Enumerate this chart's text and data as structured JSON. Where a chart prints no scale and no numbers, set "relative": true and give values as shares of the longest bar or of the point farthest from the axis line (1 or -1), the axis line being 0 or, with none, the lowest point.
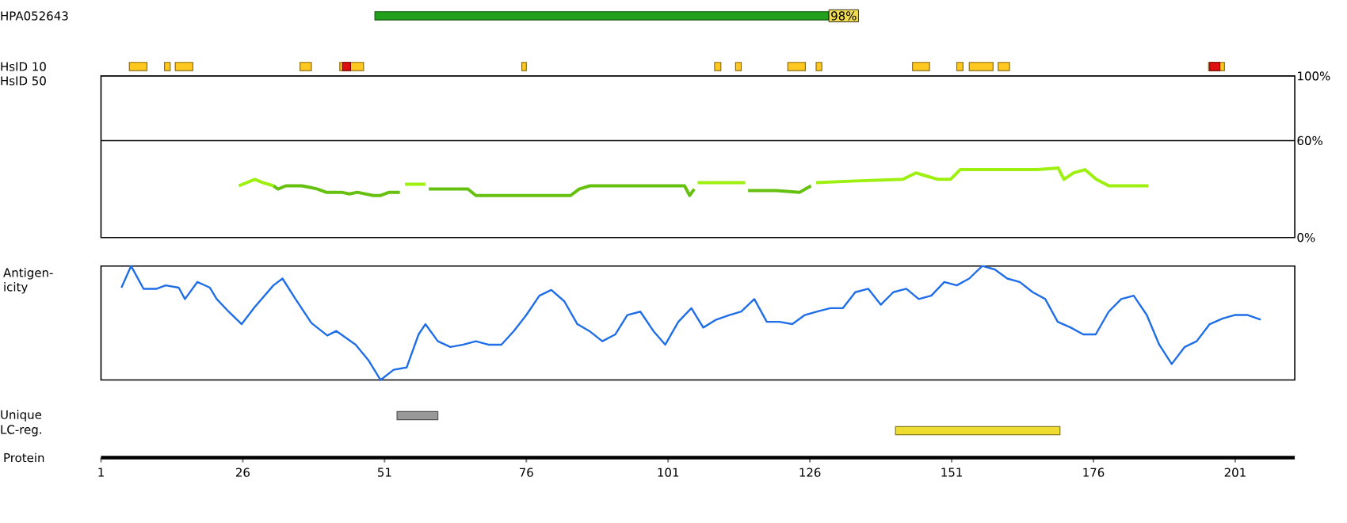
{
  "chart_data": [
    {
      "type": "bar",
      "orientation": "horizontal",
      "categories": [
        "HPA052643",
        "HsID 10",
        "HsID 50",
        "Unique",
        "LC-reg."
      ],
      "xlabel": "Protein",
      "xlim": [
        1,
        211.5
      ],
      "xticks": [
        1,
        26,
        51,
        76,
        101,
        126,
        151,
        176,
        201
      ],
      "annotations": [
        "98%"
      ],
      "series": [
        {
          "color": "#22a01c",
          "values": [
            80,
            null,
            null,
            null,
            null
          ],
          "base": [
            49.3,
            null,
            null,
            null,
            null
          ]
        },
        {
          "color": "#ffc820",
          "values": [
            null,
            3.1,
            null,
            null,
            null
          ],
          "base": [
            null,
            6.0,
            null,
            null,
            null
          ]
        },
        {
          "color": "#ffc820",
          "values": [
            null,
            1.0,
            null,
            null,
            null
          ],
          "base": [
            null,
            12.2,
            null,
            null,
            null
          ]
        },
        {
          "color": "#ffc820",
          "values": [
            null,
            3.1,
            null,
            null,
            null
          ],
          "base": [
            null,
            14.1,
            null,
            null,
            null
          ]
        },
        {
          "color": "#ffc820",
          "values": [
            null,
            2.0,
            null,
            null,
            null
          ],
          "base": [
            null,
            36.1,
            null,
            null,
            null
          ]
        },
        {
          "color": "#ffc820",
          "values": [
            null,
            4.2,
            null,
            null,
            null
          ],
          "base": [
            null,
            43.1,
            null,
            null,
            null
          ]
        },
        {
          "color": "#ffc820",
          "values": [
            null,
            0.8,
            null,
            null,
            null
          ],
          "base": [
            null,
            75.2,
            null,
            null,
            null
          ]
        },
        {
          "color": "#ffc820",
          "values": [
            null,
            1.1,
            null,
            null,
            null
          ],
          "base": [
            null,
            109.2,
            null,
            null,
            null
          ]
        },
        {
          "color": "#ffc820",
          "values": [
            null,
            1.0,
            null,
            null,
            null
          ],
          "base": [
            null,
            112.9,
            null,
            null,
            null
          ]
        },
        {
          "color": "#ffc820",
          "values": [
            null,
            3.1,
            null,
            null,
            null
          ],
          "base": [
            null,
            122.1,
            null,
            null,
            null
          ]
        },
        {
          "color": "#ffc820",
          "values": [
            null,
            1.0,
            null,
            null,
            null
          ],
          "base": [
            null,
            127.1,
            null,
            null,
            null
          ]
        },
        {
          "color": "#ffc820",
          "values": [
            null,
            3.0,
            null,
            null,
            null
          ],
          "base": [
            null,
            144.1,
            null,
            null,
            null
          ]
        },
        {
          "color": "#ffc820",
          "values": [
            null,
            1.1,
            null,
            null,
            null
          ],
          "base": [
            null,
            151.9,
            null,
            null,
            null
          ]
        },
        {
          "color": "#ffc820",
          "values": [
            null,
            4.2,
            null,
            null,
            null
          ],
          "base": [
            null,
            154.1,
            null,
            null,
            null
          ]
        },
        {
          "color": "#ffc820",
          "values": [
            null,
            2.0,
            null,
            null,
            null
          ],
          "base": [
            null,
            159.2,
            null,
            null,
            null
          ]
        },
        {
          "color": "#ffc820",
          "values": [
            null,
            2.8,
            null,
            null,
            null
          ],
          "base": [
            null,
            196.3,
            null,
            null,
            null
          ]
        },
        {
          "color": "#e01010",
          "values": [
            null,
            1.4,
            null,
            null,
            null
          ],
          "base": [
            null,
            43.6,
            null,
            null,
            null
          ]
        },
        {
          "color": "#e01010",
          "values": [
            null,
            1.8,
            null,
            null,
            null
          ],
          "base": [
            null,
            196.5,
            null,
            null,
            null
          ]
        },
        {
          "colors": [
            null,
            null,
            null,
            "#999999",
            "#f0dc30"
          ],
          "values": [
            null,
            null,
            null,
            7.2,
            29
          ],
          "base": [
            null,
            null,
            null,
            53.2,
            141.1
          ]
        }
      ]
    },
    {
      "type": "line",
      "tick_labels": "y",
      "xlim": [
        1,
        211.5
      ],
      "ylim": [
        0,
        100
      ],
      "yticks": [
        {
          "value": 0,
          "label": "0%"
        },
        {
          "value": 60,
          "label": "60%"
        },
        {
          "value": 100,
          "label": "100%"
        }
      ],
      "ref_lines": [
        {
          "axis": "y",
          "value": 60,
          "color": "#000000"
        }
      ],
      "series": [
        {
          "color": "#66c010",
          "x": [
            31.4,
            32.2,
            33.6,
            36.4,
            37.9,
            39.2,
            40.7,
            43.4,
            44.8,
            46.2,
            47.6,
            49.0,
            50.3,
            51.8,
            53.7,
            54.2,
            58.8,
            65.7,
            67.1,
            83.8,
            85.3,
            87.2,
            95.1,
            103.9,
            104.8,
            105.6,
            105.9,
            115.1,
            120.1,
            124.2,
            126.2
          ],
          "values": [
            32,
            30,
            32,
            32,
            31,
            30,
            28,
            28,
            27,
            28,
            27,
            26,
            26,
            28,
            28,
            null,
            30,
            30,
            26,
            26,
            30,
            32,
            32,
            32,
            26,
            30,
            null,
            29,
            29,
            28,
            32
          ]
        },
        {
          "color": "#9ef010",
          "x": [
            25.3,
            26.7,
            28.1,
            29.5,
            31.4,
            31.7,
            54.6,
            58.2,
            58.5,
            106.2,
            114.6,
            114.8,
            127.1,
            134.0,
            142.4,
            144.7,
            146.6,
            148.6,
            150.8,
            152.5,
            166.1,
            169.8,
            170.8,
            172.5,
            174.5,
            176.5,
            178.7,
            185.7
          ],
          "values": [
            32,
            34,
            36,
            34,
            32,
            null,
            33,
            33,
            null,
            34,
            34,
            null,
            34,
            35,
            36,
            40,
            38,
            36,
            36,
            42,
            42,
            43,
            36,
            40,
            42,
            36,
            32,
            32
          ]
        }
      ]
    },
    {
      "type": "line",
      "relative": true,
      "tick_labels": false,
      "ylabel": "Antigen-icity",
      "xlim": [
        1,
        211.5
      ],
      "series": [
        {
          "color": "#1f6ee8",
          "x": [
            4.6,
            6.3,
            8.5,
            10.8,
            12.4,
            14.7,
            15.8,
            18.0,
            20.2,
            21.4,
            23.5,
            25.8,
            28.1,
            31.4,
            33.0,
            35.3,
            38.1,
            40.9,
            42.5,
            45.9,
            48.2,
            50.3,
            52.6,
            54.9,
            57.0,
            58.2,
            60.4,
            62.6,
            64.9,
            67.1,
            69.3,
            71.6,
            73.8,
            76.0,
            78.3,
            80.4,
            82.7,
            85.0,
            87.1,
            89.4,
            91.7,
            93.8,
            96.1,
            98.4,
            100.5,
            102.8,
            105.1,
            107.2,
            109.5,
            111.8,
            113.9,
            116.2,
            118.4,
            120.6,
            122.9,
            125.1,
            127.3,
            129.6,
            131.8,
            134.0,
            136.3,
            138.5,
            140.7,
            143.0,
            145.2,
            147.4,
            149.7,
            151.9,
            154.1,
            156.4,
            158.6,
            160.8,
            163.0,
            165.3,
            167.5,
            169.7,
            172.0,
            174.2,
            176.4,
            178.7,
            180.9,
            183.1,
            185.4,
            187.6,
            189.8,
            192.1,
            194.2,
            196.5,
            198.8,
            200.9,
            203.2,
            205.5
          ],
          "values": [
            0.81,
            1.0,
            0.8,
            0.8,
            0.83,
            0.81,
            0.71,
            0.86,
            0.81,
            0.71,
            0.6,
            0.49,
            0.64,
            0.83,
            0.89,
            0.71,
            0.5,
            0.39,
            0.43,
            0.31,
            0.17,
            0.0,
            0.09,
            0.11,
            0.4,
            0.49,
            0.34,
            0.29,
            0.31,
            0.34,
            0.31,
            0.31,
            0.43,
            0.57,
            0.74,
            0.79,
            0.69,
            0.49,
            0.43,
            0.34,
            0.4,
            0.57,
            0.6,
            0.43,
            0.31,
            0.51,
            0.63,
            0.46,
            0.53,
            0.57,
            0.6,
            0.71,
            0.51,
            0.51,
            0.49,
            0.57,
            0.6,
            0.63,
            0.63,
            0.77,
            0.8,
            0.66,
            0.77,
            0.8,
            0.71,
            0.74,
            0.86,
            0.83,
            0.89,
            1.0,
            0.97,
            0.89,
            0.86,
            0.77,
            0.71,
            0.51,
            0.46,
            0.4,
            0.4,
            0.6,
            0.71,
            0.74,
            0.57,
            0.31,
            0.14,
            0.29,
            0.34,
            0.49,
            0.54,
            0.57,
            0.57,
            0.53
          ]
        }
      ]
    }
  ]
}
